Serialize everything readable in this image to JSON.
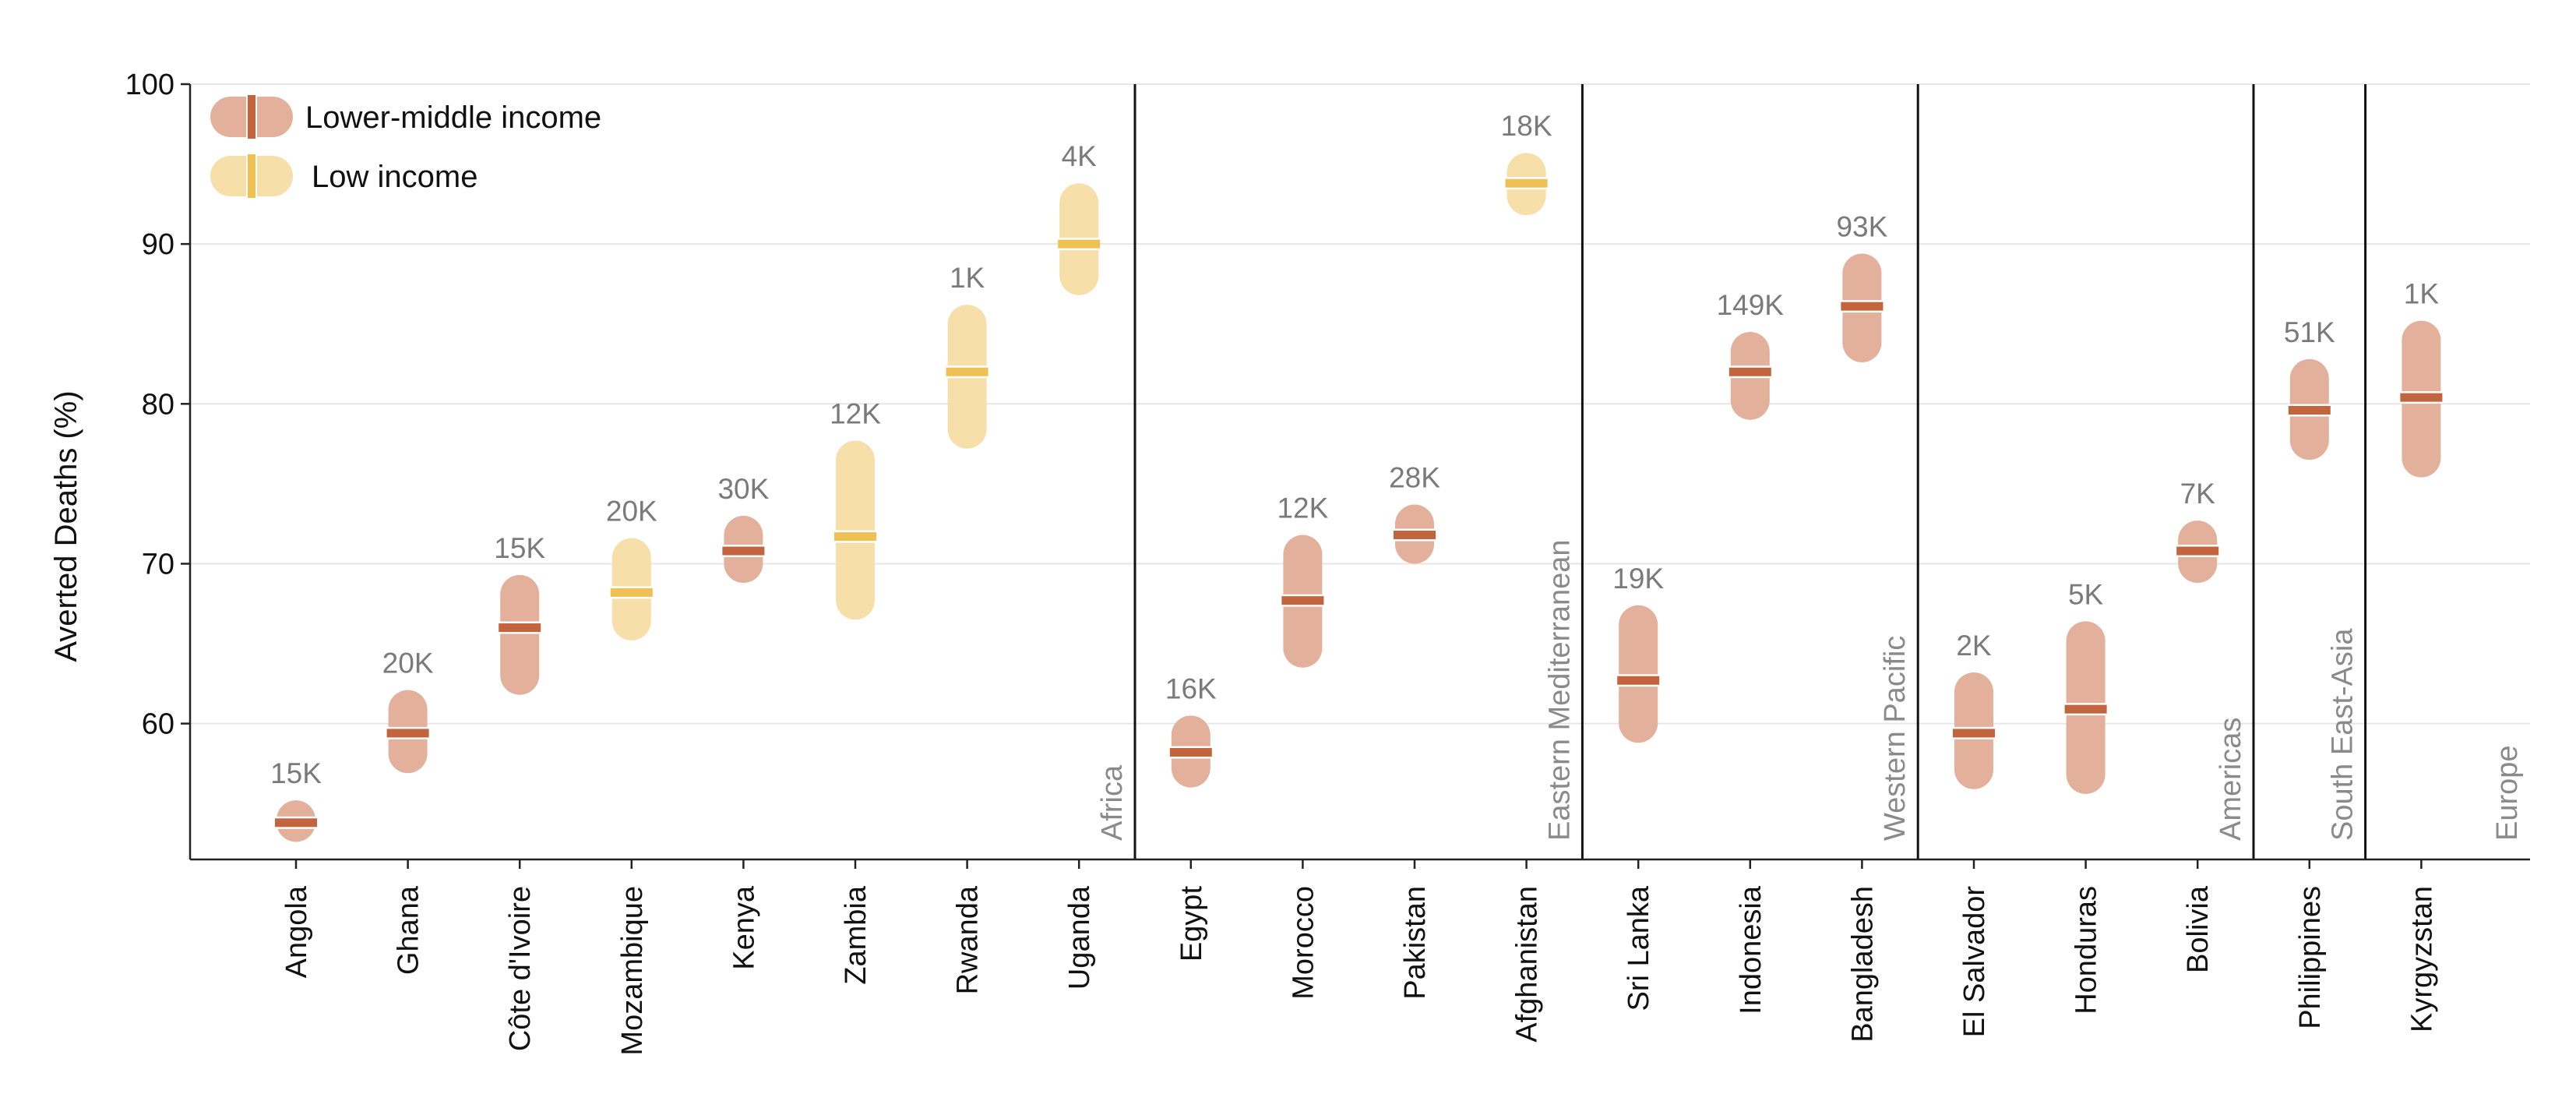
{
  "chart_data": {
    "type": "range",
    "ylabel": "Averted Deaths (%)",
    "ylim": [
      51.5,
      100
    ],
    "yticks": [
      60,
      70,
      80,
      90,
      100
    ],
    "grid": true,
    "legend": {
      "placement": "top-left",
      "entries": [
        {
          "name": "Lower-middle income",
          "key": "lmi"
        },
        {
          "name": "Low income",
          "key": "li"
        }
      ]
    },
    "colors": {
      "lmi_fill": "#e3b09c",
      "lmi_marker": "#c2643e",
      "li_fill": "#f7dfaa",
      "li_marker": "#efc054",
      "grid": "#e6e6e6",
      "axis": "#222222"
    },
    "regions": [
      {
        "name": "Africa",
        "count": 8
      },
      {
        "name": "Eastern Mediterranean",
        "count": 4
      },
      {
        "name": "Western Pacific",
        "count": 3
      },
      {
        "name": "Americas",
        "count": 3
      },
      {
        "name": "South East-Asia",
        "count": 1
      },
      {
        "name": "Europe",
        "count": 1
      }
    ],
    "countries": [
      {
        "name": "Angola",
        "income": "lmi",
        "median": 53.8,
        "low": 52.6,
        "high": 55.2,
        "label": "15K"
      },
      {
        "name": "Ghana",
        "income": "lmi",
        "median": 59.4,
        "low": 56.9,
        "high": 62.1,
        "label": "20K"
      },
      {
        "name": "Côte d'Ivoire",
        "income": "lmi",
        "median": 66.0,
        "low": 61.8,
        "high": 69.3,
        "label": "15K"
      },
      {
        "name": "Mozambique",
        "income": "li",
        "median": 68.2,
        "low": 65.2,
        "high": 71.6,
        "label": "20K"
      },
      {
        "name": "Kenya",
        "income": "lmi",
        "median": 70.8,
        "low": 68.8,
        "high": 73.0,
        "label": "30K"
      },
      {
        "name": "Zambia",
        "income": "li",
        "median": 71.7,
        "low": 66.5,
        "high": 77.7,
        "label": "12K"
      },
      {
        "name": "Rwanda",
        "income": "li",
        "median": 82.0,
        "low": 77.2,
        "high": 86.2,
        "label": "1K"
      },
      {
        "name": "Uganda",
        "income": "li",
        "median": 90.0,
        "low": 86.8,
        "high": 93.8,
        "label": "4K"
      },
      {
        "name": "Egypt",
        "income": "lmi",
        "median": 58.2,
        "low": 56.0,
        "high": 60.5,
        "label": "16K"
      },
      {
        "name": "Morocco",
        "income": "lmi",
        "median": 67.7,
        "low": 63.5,
        "high": 71.8,
        "label": "12K"
      },
      {
        "name": "Pakistan",
        "income": "lmi",
        "median": 71.8,
        "low": 70.0,
        "high": 73.7,
        "label": "28K"
      },
      {
        "name": "Afghanistan",
        "income": "li",
        "median": 93.8,
        "low": 91.8,
        "high": 95.7,
        "label": "18K"
      },
      {
        "name": "Sri Lanka",
        "income": "lmi",
        "median": 62.7,
        "low": 58.8,
        "high": 67.4,
        "label": "19K"
      },
      {
        "name": "Indonesia",
        "income": "lmi",
        "median": 82.0,
        "low": 79.0,
        "high": 84.5,
        "label": "149K"
      },
      {
        "name": "Bangladesh",
        "income": "lmi",
        "median": 86.1,
        "low": 82.6,
        "high": 89.4,
        "label": "93K"
      },
      {
        "name": "El Salvador",
        "income": "lmi",
        "median": 59.4,
        "low": 55.9,
        "high": 63.2,
        "label": "2K"
      },
      {
        "name": "Honduras",
        "income": "lmi",
        "median": 60.9,
        "low": 55.6,
        "high": 66.4,
        "label": "5K"
      },
      {
        "name": "Bolivia",
        "income": "lmi",
        "median": 70.8,
        "low": 68.8,
        "high": 72.7,
        "label": "7K"
      },
      {
        "name": "Philippines",
        "income": "lmi",
        "median": 79.6,
        "low": 76.5,
        "high": 82.8,
        "label": "51K"
      },
      {
        "name": "Kyrgyzstan",
        "income": "lmi",
        "median": 80.4,
        "low": 75.4,
        "high": 85.2,
        "label": "1K"
      }
    ]
  }
}
